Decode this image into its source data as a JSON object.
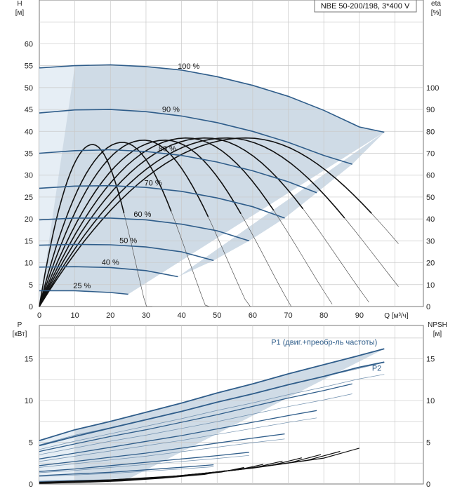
{
  "chart_data": [
    {
      "type": "line",
      "title": "NBE 50-200/198, 3*400 V",
      "xlabel": "Q [м³/ч]",
      "ylabel_left": "H",
      "ylabel_left_unit": "[м]",
      "ylabel_right": "eta",
      "ylabel_right_unit": "[%]",
      "x_ticks": [
        "0",
        "10",
        "20",
        "30",
        "40",
        "50",
        "60",
        "70",
        "80",
        "90"
      ],
      "y_left_ticks": [
        "0",
        "5",
        "10",
        "15",
        "20",
        "25",
        "30",
        "35",
        "40",
        "45",
        "50",
        "55",
        "60"
      ],
      "y_right_ticks": [
        "0",
        "10",
        "20",
        "30",
        "40",
        "50",
        "60",
        "70",
        "80",
        "90",
        "100"
      ],
      "xlim": [
        0,
        108
      ],
      "ylim_left": [
        0,
        70
      ],
      "ylim_right": [
        0,
        140
      ],
      "grid": true,
      "series": [
        {
          "name": "100 %",
          "x": [
            0,
            10,
            20,
            30,
            40,
            50,
            60,
            70,
            80,
            90,
            97
          ],
          "values": [
            54.5,
            55.0,
            55.2,
            54.8,
            54.0,
            52.5,
            50.5,
            48.0,
            44.8,
            41.0,
            39.8
          ]
        },
        {
          "name": "90 %",
          "x": [
            0,
            10,
            20,
            30,
            40,
            50,
            60,
            70,
            80,
            88
          ],
          "values": [
            44.2,
            44.9,
            45.0,
            44.5,
            43.5,
            42.0,
            40.0,
            37.5,
            34.5,
            32.5
          ]
        },
        {
          "name": "80 %",
          "x": [
            0,
            10,
            20,
            30,
            40,
            50,
            60,
            70,
            78
          ],
          "values": [
            35.0,
            35.6,
            35.8,
            35.4,
            34.5,
            33.0,
            31.0,
            28.5,
            26.0
          ]
        },
        {
          "name": "70 %",
          "x": [
            0,
            10,
            20,
            30,
            40,
            50,
            60,
            69
          ],
          "values": [
            27.0,
            27.5,
            27.6,
            27.2,
            26.3,
            24.8,
            22.8,
            20.2
          ]
        },
        {
          "name": "60 %",
          "x": [
            0,
            10,
            20,
            30,
            40,
            50,
            59
          ],
          "values": [
            19.8,
            20.2,
            20.2,
            19.8,
            18.8,
            17.3,
            15.0
          ]
        },
        {
          "name": "50 %",
          "x": [
            0,
            10,
            20,
            30,
            40,
            49
          ],
          "values": [
            14.0,
            14.2,
            14.1,
            13.6,
            12.5,
            10.5
          ]
        },
        {
          "name": "40 %",
          "x": [
            0,
            10,
            20,
            30,
            39
          ],
          "values": [
            9.0,
            9.1,
            8.9,
            8.2,
            6.8
          ]
        },
        {
          "name": "25 %",
          "x": [
            0,
            10,
            20,
            25
          ],
          "values": [
            3.6,
            3.6,
            3.2,
            2.8
          ]
        }
      ],
      "eta_peaks_percent": [
        77,
        77,
        77,
        77,
        76,
        76,
        75,
        74
      ]
    },
    {
      "type": "line",
      "xlabel": "Q [м³/ч]",
      "ylabel_left": "P",
      "ylabel_left_unit": "[кВт]",
      "ylabel_right": "NPSH",
      "ylabel_right_unit": "[м]",
      "y_left_ticks": [
        "0",
        "5",
        "10",
        "15"
      ],
      "y_right_ticks": [
        "0",
        "5",
        "10",
        "15"
      ],
      "xlim": [
        0,
        108
      ],
      "ylim_left": [
        0,
        19
      ],
      "ylim_right": [
        0,
        19
      ],
      "grid": true,
      "series": [
        {
          "name": "P1 (двиг.+преобр-ль частоты)",
          "x": [
            0,
            10,
            20,
            30,
            40,
            50,
            60,
            70,
            80,
            90,
            97
          ],
          "values": [
            5.2,
            6.5,
            7.5,
            8.6,
            9.7,
            10.9,
            12.0,
            13.2,
            14.3,
            15.4,
            16.2
          ]
        },
        {
          "name": "P2",
          "x": [
            0,
            10,
            20,
            30,
            40,
            50,
            60,
            70,
            80,
            90,
            97
          ],
          "values": [
            4.6,
            5.7,
            6.7,
            7.7,
            8.7,
            9.8,
            10.8,
            11.9,
            12.9,
            14.0,
            14.6
          ]
        },
        {
          "name": "",
          "x": [
            0,
            10,
            20,
            30,
            40,
            50,
            60,
            70,
            80,
            88
          ],
          "values": [
            3.9,
            4.8,
            5.7,
            6.5,
            7.4,
            8.3,
            9.3,
            10.3,
            11.2,
            12.0
          ]
        },
        {
          "name": "",
          "x": [
            0,
            10,
            20,
            30,
            40,
            50,
            60,
            70,
            78
          ],
          "values": [
            3.0,
            3.7,
            4.4,
            5.1,
            5.8,
            6.6,
            7.4,
            8.2,
            8.8
          ]
        },
        {
          "name": "",
          "x": [
            0,
            10,
            20,
            30,
            40,
            50,
            60,
            69
          ],
          "values": [
            2.2,
            2.7,
            3.2,
            3.7,
            4.3,
            4.9,
            5.5,
            6.0
          ]
        },
        {
          "name": "",
          "x": [
            0,
            10,
            20,
            30,
            40,
            50,
            59
          ],
          "values": [
            1.5,
            1.8,
            2.2,
            2.6,
            3.0,
            3.4,
            3.8
          ]
        },
        {
          "name": "",
          "x": [
            0,
            10,
            20,
            30,
            40,
            49
          ],
          "values": [
            1.0,
            1.2,
            1.4,
            1.7,
            2.0,
            2.3
          ]
        },
        {
          "name": "",
          "x": [
            0,
            10,
            20,
            25
          ],
          "values": [
            0.3,
            0.4,
            0.5,
            0.6
          ]
        }
      ],
      "npsh": {
        "x": [
          0,
          20,
          40,
          60,
          80,
          90
        ],
        "values": [
          0.2,
          0.5,
          1.0,
          1.9,
          3.1,
          4.3
        ]
      }
    }
  ]
}
